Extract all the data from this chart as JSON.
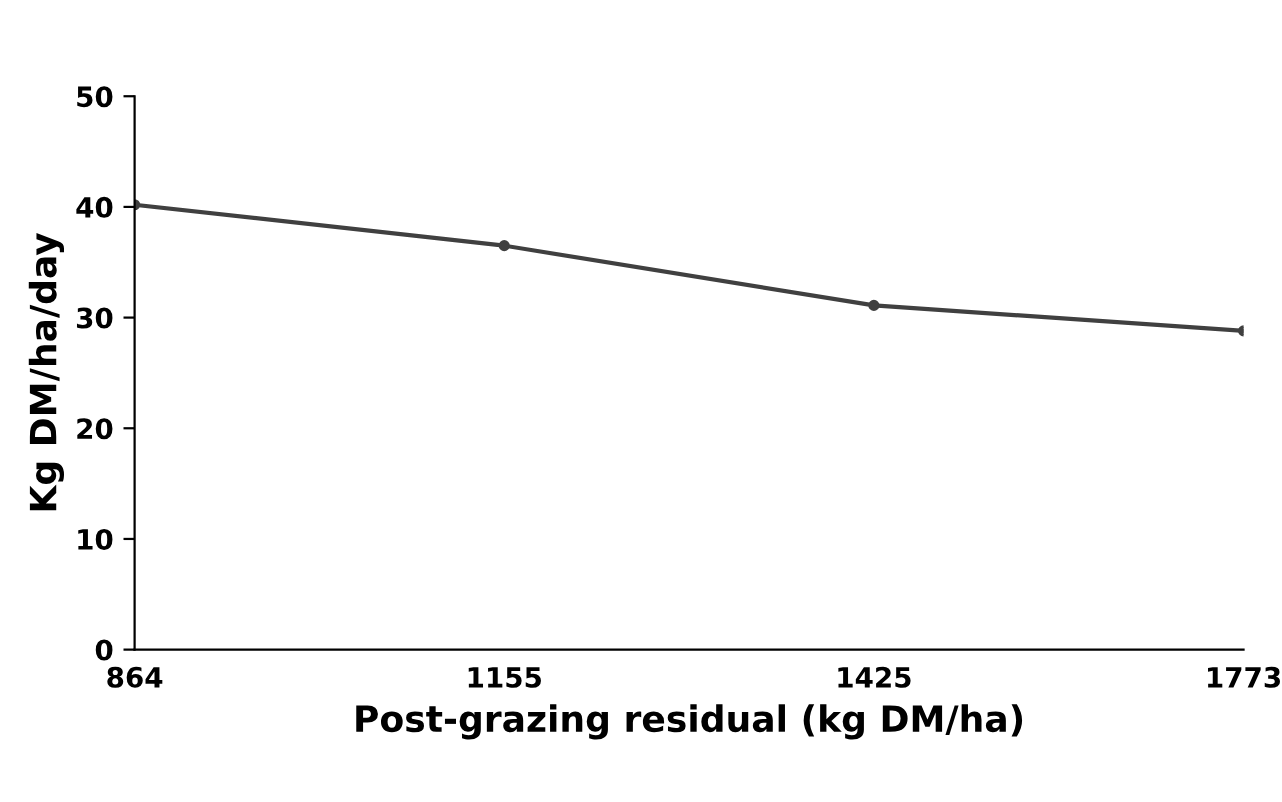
{
  "chart_data": {
    "type": "line",
    "xlabel": "Post-grazing residual (kg DM/ha)",
    "ylabel": "Kg DM/ha/day",
    "categories": [
      "864",
      "1155",
      "1425",
      "1773"
    ],
    "series": [
      {
        "color": "#404040",
        "values": [
          40.2,
          36.5,
          31.1,
          28.8
        ]
      }
    ],
    "ylim": [
      0,
      50
    ],
    "yticks": [
      0,
      10,
      20,
      30,
      40,
      50
    ],
    "grid": false,
    "legend": false,
    "marker": "circle",
    "line_style": "solid"
  }
}
